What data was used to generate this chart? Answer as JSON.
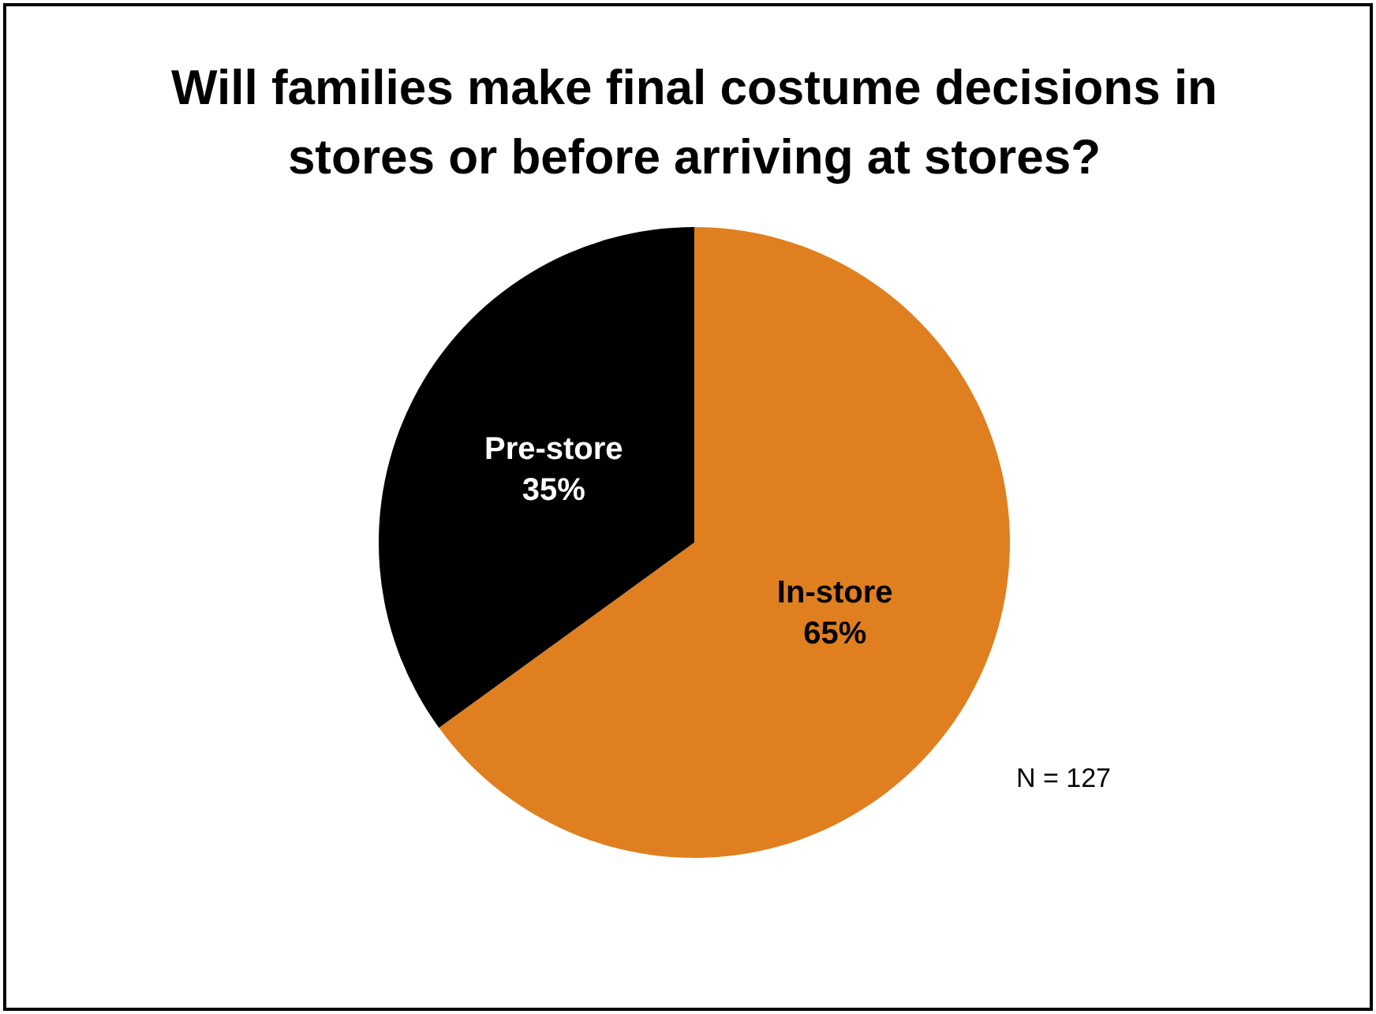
{
  "chart_data": {
    "type": "pie",
    "title": "Will families make final costume decisions in stores or before arriving at stores?",
    "categories": [
      "In-store",
      "Pre-store"
    ],
    "values": [
      65,
      35
    ],
    "colors": [
      "#e07f1f",
      "#000000"
    ],
    "value_labels": [
      "65%",
      "35%"
    ],
    "legend": false,
    "annotations": [
      "N = 127"
    ]
  }
}
